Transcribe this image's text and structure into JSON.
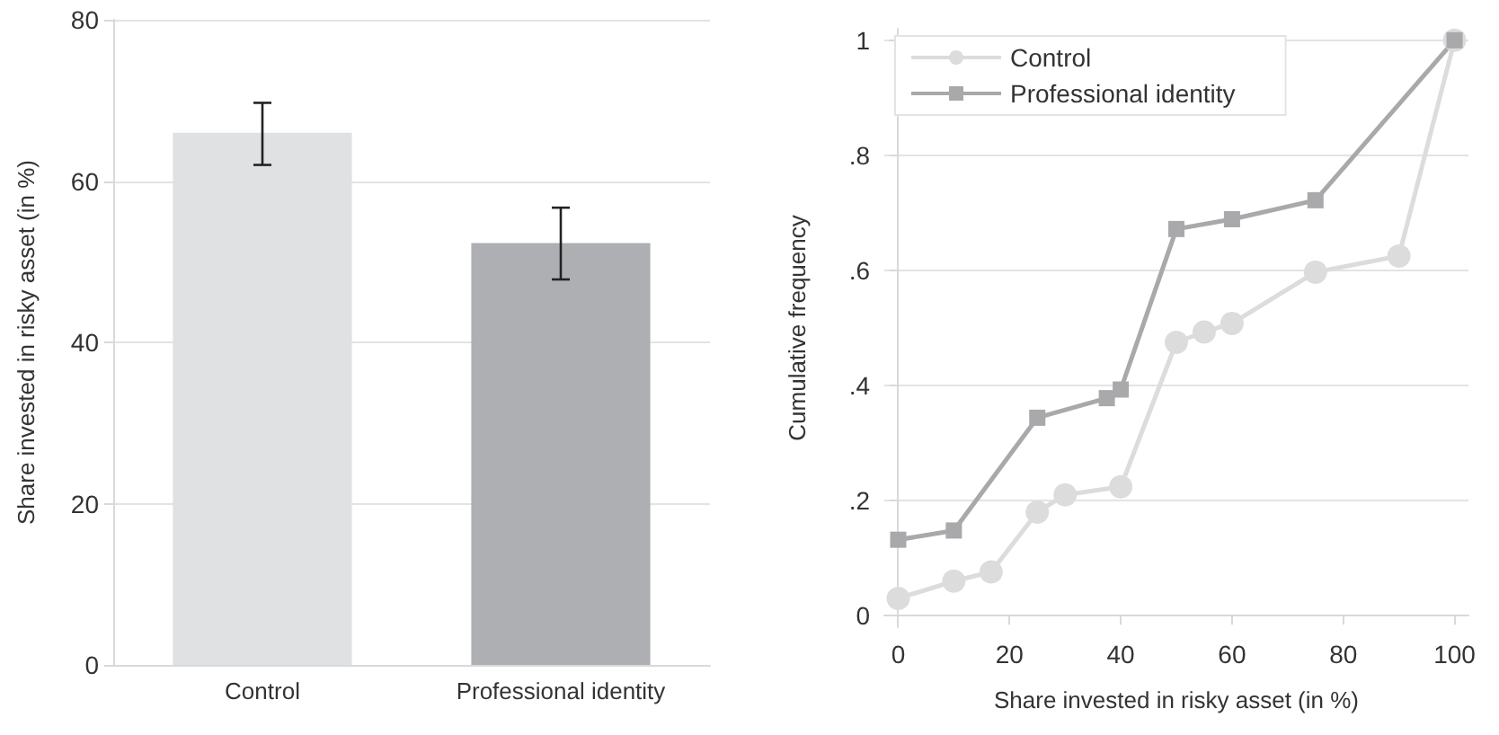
{
  "chart_data": [
    {
      "type": "bar",
      "ylabel": "Share invested in risky asset (in %)",
      "categories": [
        "Control",
        "Professional identity"
      ],
      "values": [
        66,
        52.3
      ],
      "colors": [
        "#e0e1e3",
        "#aeafb2"
      ],
      "errors": [
        [
          62,
          69.7
        ],
        [
          47.8,
          56.7
        ]
      ],
      "ylim": [
        0,
        80
      ],
      "yticks": [
        0,
        20,
        40,
        60,
        80
      ],
      "grid": "y"
    },
    {
      "type": "line",
      "xlabel": "Share invested in risky asset (in %)",
      "ylabel": "Cumulative frequency",
      "xlim": [
        -2.5,
        102.5
      ],
      "xticks": [
        0,
        20,
        40,
        60,
        80,
        100
      ],
      "ylim": [
        -0.02,
        1.02
      ],
      "yticks": [
        {
          "value": 0,
          "label": "0"
        },
        {
          "value": 0.2,
          "label": ".2"
        },
        {
          "value": 0.4,
          "label": ".4"
        },
        {
          "value": 0.6,
          "label": ".6"
        },
        {
          "value": 0.8,
          "label": ".8"
        },
        {
          "value": 1,
          "label": "1"
        }
      ],
      "grid": "y",
      "legend": "top left",
      "line_style": "solid",
      "series": [
        {
          "name": "Control",
          "color": "#dcdcdd",
          "marker": "circle",
          "x": [
            0,
            10,
            16.7,
            25,
            30,
            40,
            50,
            55,
            60,
            75,
            90,
            100
          ],
          "values": [
            0.03,
            0.06,
            0.076,
            0.18,
            0.21,
            0.224,
            0.475,
            0.493,
            0.508,
            0.597,
            0.625,
            1
          ]
        },
        {
          "name": "Professional identity",
          "color": "#a9a9ab",
          "marker": "square",
          "x": [
            0,
            10,
            25,
            37.5,
            40,
            50,
            60,
            75,
            100
          ],
          "values": [
            0.132,
            0.148,
            0.344,
            0.378,
            0.393,
            0.672,
            0.689,
            0.722,
            1
          ]
        }
      ]
    }
  ]
}
